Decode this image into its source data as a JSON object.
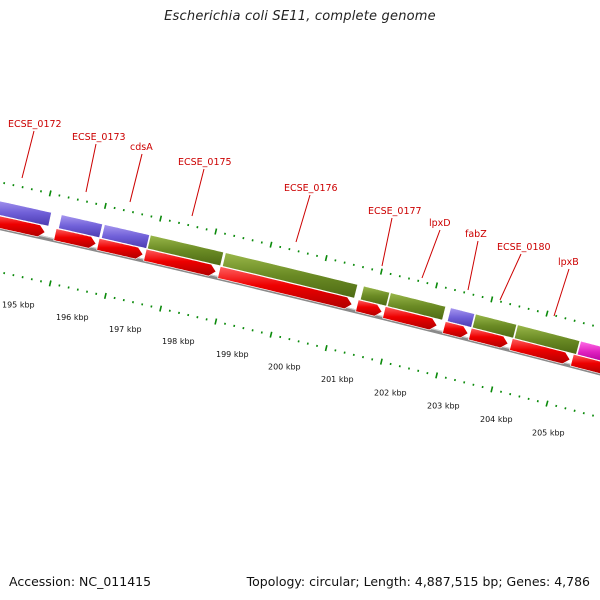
{
  "title": "Escherichia coli SE11, complete genome",
  "accession": "Accession: NC_011415",
  "summary": "Topology: circular; Length: 4,887,515 bp; Genes: 4,786",
  "genes": [
    {
      "label": "ECSE_0172"
    },
    {
      "label": "ECSE_0173"
    },
    {
      "label": "cdsA"
    },
    {
      "label": "ECSE_0175"
    },
    {
      "label": "ECSE_0176"
    },
    {
      "label": "ECSE_0177"
    },
    {
      "label": "lpxD"
    },
    {
      "label": "fabZ"
    },
    {
      "label": "ECSE_0180"
    },
    {
      "label": "lpxB"
    }
  ],
  "ticks": [
    "195 kbp",
    "196 kbp",
    "197 kbp",
    "198 kbp",
    "199 kbp",
    "200 kbp",
    "201 kbp",
    "202 kbp",
    "203 kbp",
    "204 kbp",
    "205 kbp"
  ],
  "colors": {
    "purple": "#7060d8",
    "olive": "#6a8a24",
    "magenta": "#e020c0",
    "red": "#ee0000",
    "label": "#cc0000",
    "tick": "#0a8a0a"
  }
}
